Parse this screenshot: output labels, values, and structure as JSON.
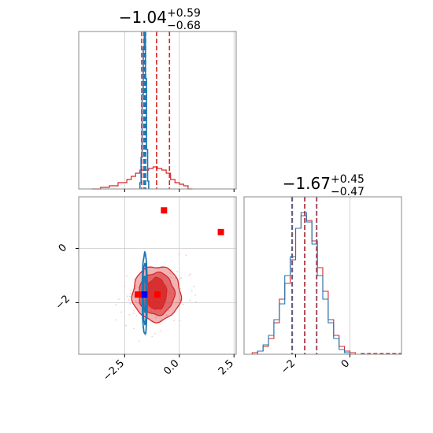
{
  "chart_data": {
    "type": "corner",
    "colors": {
      "red": "#d62728",
      "blue": "#1f77b4",
      "marker_red": "#ff0000",
      "marker_blue": "#0000ff",
      "grid": "#c8c8c8",
      "frame": "#888888"
    },
    "titles": [
      {
        "param": 0,
        "main": "−1.04",
        "sup": "+0.59",
        "sub": "−0.68"
      },
      {
        "param": 1,
        "main": "−1.67",
        "sup": "+0.45",
        "sub": "−0.47"
      }
    ],
    "axes": {
      "x0": {
        "range": [
          -4.6,
          2.6
        ],
        "ticks": [
          -2.5,
          0.0,
          2.5
        ],
        "tick_labels": [
          "−2.5",
          "0.0",
          "2.5"
        ],
        "grid": [
          -2.5,
          0.0,
          2.5
        ]
      },
      "y1": {
        "range": [
          -3.9,
          1.9
        ],
        "ticks": [
          -2,
          0
        ],
        "tick_labels": [
          "−2",
          "0"
        ],
        "grid": [
          -2,
          0
        ]
      },
      "x1": {
        "range": [
          -3.9,
          1.9
        ],
        "ticks": [
          -2,
          0
        ],
        "tick_labels": [
          "−2",
          "0"
        ],
        "grid": [
          0
        ]
      }
    },
    "marginal_0": {
      "red_edges": [
        -4.0,
        -3.6,
        -3.2,
        -2.8,
        -2.4,
        -2.2,
        -2.0,
        -1.8,
        -1.6,
        -1.4,
        -1.2,
        -1.0,
        -0.8,
        -0.6,
        -0.4,
        -0.2,
        0.0,
        0.2,
        0.4,
        0.6
      ],
      "red_values": [
        0.0,
        0.01,
        0.02,
        0.04,
        0.06,
        0.08,
        0.1,
        0.12,
        0.12,
        0.13,
        0.14,
        0.13,
        0.12,
        0.1,
        0.06,
        0.04,
        0.03,
        0.02,
        0.0
      ],
      "blue_peak_x": -1.58,
      "blue_edges": [
        -1.8,
        -1.75,
        -1.7,
        -1.65,
        -1.6,
        -1.55,
        -1.5,
        -1.45,
        -1.4
      ],
      "blue_values": [
        0.04,
        0.2,
        0.6,
        0.9,
        0.98,
        0.7,
        0.25,
        0.05
      ],
      "ylim": [
        0,
        1.0
      ],
      "red_quantiles": [
        -1.72,
        -1.04,
        -0.45
      ],
      "blue_quantiles": [
        -1.62,
        -1.58,
        -1.54
      ]
    },
    "marginal_1": {
      "edges": [
        -3.8,
        -3.6,
        -3.4,
        -3.2,
        -3.0,
        -2.8,
        -2.6,
        -2.4,
        -2.2,
        -2.0,
        -1.8,
        -1.6,
        -1.4,
        -1.2,
        -1.0,
        -0.8,
        -0.6,
        -0.4,
        -0.2,
        0.0,
        0.2,
        0.4
      ],
      "red_values": [
        0.0,
        0.01,
        0.02,
        0.05,
        0.1,
        0.2,
        0.35,
        0.45,
        0.6,
        0.8,
        0.88,
        0.85,
        0.72,
        0.55,
        0.4,
        0.22,
        0.12,
        0.05,
        0.02,
        0.01,
        0.0
      ],
      "blue_values": [
        0.0,
        0.0,
        0.02,
        0.06,
        0.12,
        0.22,
        0.32,
        0.5,
        0.62,
        0.8,
        0.9,
        0.84,
        0.7,
        0.5,
        0.35,
        0.2,
        0.1,
        0.03,
        0.01,
        0.0,
        0.0
      ],
      "ylim": [
        0,
        1.0
      ],
      "red_quantiles": [
        -2.14,
        -1.67,
        -1.22
      ],
      "blue_quantiles": [
        -2.12,
        -1.66,
        -1.23
      ]
    },
    "joint": {
      "red_center": [
        -1.04,
        -1.67
      ],
      "red_contours_sigma": [
        [
          0.35,
          0.45
        ],
        [
          0.62,
          0.6
        ],
        [
          0.85,
          0.78
        ]
      ],
      "blue_center": [
        -1.58,
        -1.67
      ],
      "blue_contours_sigma": [
        [
          0.04,
          0.5
        ],
        [
          0.07,
          0.85
        ],
        [
          0.09,
          1.15
        ]
      ],
      "markers_red": [
        [
          -0.7,
          1.4
        ],
        [
          1.9,
          0.6
        ],
        [
          -1.9,
          -1.7
        ],
        [
          -1.0,
          -1.7
        ]
      ],
      "markers_blue": [
        [
          -1.6,
          -1.7
        ]
      ]
    }
  }
}
